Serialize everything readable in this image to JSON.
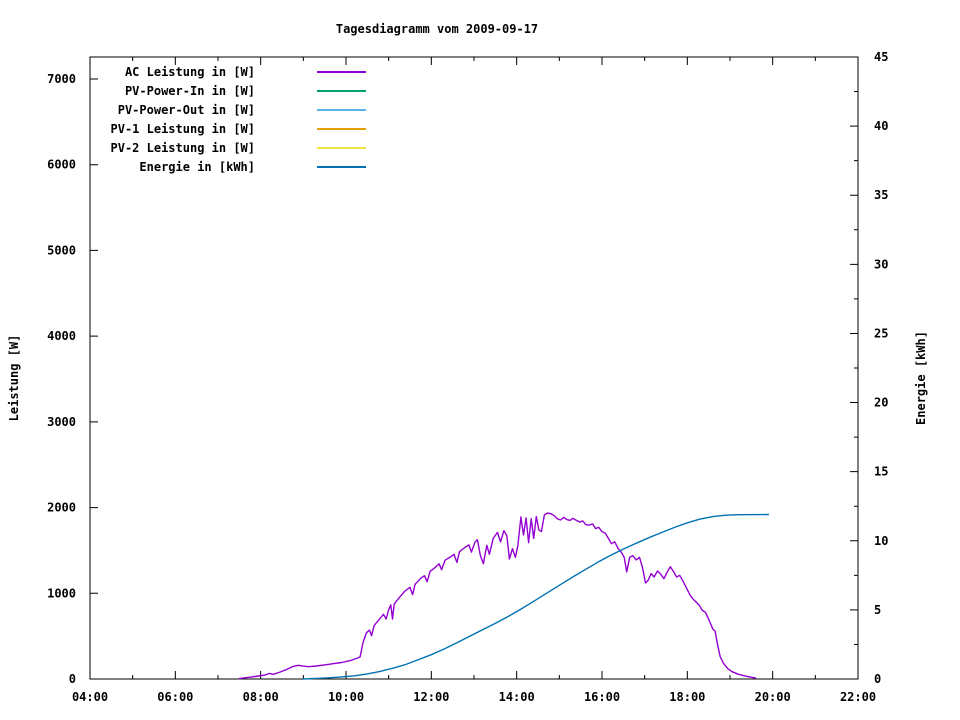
{
  "title": "Tagesdiagramm vom 2009-09-17",
  "axes": {
    "left_label": "Leistung [W]",
    "right_label": "Energie [kWh]"
  },
  "chart_data": {
    "type": "line",
    "title": "Tagesdiagramm vom 2009-09-17",
    "xlabel": "",
    "x_axis": {
      "unit": "time",
      "start_hour": 4,
      "end_hour": 22,
      "major_tick_labels": [
        "04:00",
        "06:00",
        "08:00",
        "10:00",
        "12:00",
        "14:00",
        "16:00",
        "18:00",
        "20:00",
        "22:00"
      ],
      "major_tick_hours": [
        4,
        6,
        8,
        10,
        12,
        14,
        16,
        18,
        20,
        22
      ],
      "minor_tick_hours": [
        5,
        7,
        9,
        11,
        13,
        15,
        17,
        19,
        21
      ]
    },
    "y_axis_left": {
      "label": "Leistung [W]",
      "range": [
        0,
        7256
      ],
      "ticks": [
        0,
        1000,
        2000,
        3000,
        4000,
        5000,
        6000,
        7000
      ]
    },
    "y_axis_right": {
      "label": "Energie [kWh]",
      "range": [
        0,
        45
      ],
      "ticks": [
        0,
        5,
        10,
        15,
        20,
        25,
        30,
        35,
        40,
        45
      ],
      "minor_ticks": [
        2.5,
        7.5,
        12.5,
        17.5,
        22.5,
        27.5,
        32.5,
        37.5,
        42.5
      ]
    },
    "legend_position": "top-left-inside",
    "grid": false,
    "series": [
      {
        "name": "AC Leistung in [W]",
        "color": "#9400D3",
        "axis": "left",
        "points": [
          [
            7.5,
            5
          ],
          [
            7.65,
            15
          ],
          [
            7.8,
            25
          ],
          [
            7.95,
            35
          ],
          [
            8.1,
            45
          ],
          [
            8.2,
            65
          ],
          [
            8.3,
            55
          ],
          [
            8.45,
            80
          ],
          [
            8.6,
            110
          ],
          [
            8.75,
            145
          ],
          [
            8.88,
            160
          ],
          [
            9.0,
            150
          ],
          [
            9.12,
            143
          ],
          [
            9.3,
            152
          ],
          [
            9.5,
            165
          ],
          [
            9.7,
            178
          ],
          [
            9.9,
            192
          ],
          [
            10.1,
            215
          ],
          [
            10.25,
            240
          ],
          [
            10.33,
            258
          ],
          [
            10.4,
            430
          ],
          [
            10.48,
            540
          ],
          [
            10.55,
            570
          ],
          [
            10.6,
            505
          ],
          [
            10.66,
            625
          ],
          [
            10.78,
            695
          ],
          [
            10.88,
            755
          ],
          [
            10.94,
            700
          ],
          [
            11.0,
            810
          ],
          [
            11.05,
            865
          ],
          [
            11.09,
            700
          ],
          [
            11.13,
            875
          ],
          [
            11.25,
            950
          ],
          [
            11.38,
            1025
          ],
          [
            11.5,
            1070
          ],
          [
            11.56,
            985
          ],
          [
            11.62,
            1105
          ],
          [
            11.75,
            1175
          ],
          [
            11.84,
            1205
          ],
          [
            11.9,
            1135
          ],
          [
            11.97,
            1255
          ],
          [
            12.1,
            1305
          ],
          [
            12.18,
            1345
          ],
          [
            12.24,
            1275
          ],
          [
            12.32,
            1385
          ],
          [
            12.45,
            1425
          ],
          [
            12.53,
            1455
          ],
          [
            12.6,
            1360
          ],
          [
            12.66,
            1485
          ],
          [
            12.8,
            1540
          ],
          [
            12.88,
            1565
          ],
          [
            12.94,
            1480
          ],
          [
            13.02,
            1595
          ],
          [
            13.08,
            1625
          ],
          [
            13.15,
            1440
          ],
          [
            13.22,
            1345
          ],
          [
            13.3,
            1560
          ],
          [
            13.36,
            1455
          ],
          [
            13.45,
            1640
          ],
          [
            13.55,
            1710
          ],
          [
            13.62,
            1600
          ],
          [
            13.7,
            1730
          ],
          [
            13.77,
            1670
          ],
          [
            13.83,
            1400
          ],
          [
            13.9,
            1520
          ],
          [
            13.97,
            1420
          ],
          [
            14.03,
            1560
          ],
          [
            14.1,
            1890
          ],
          [
            14.16,
            1680
          ],
          [
            14.22,
            1880
          ],
          [
            14.28,
            1590
          ],
          [
            14.34,
            1870
          ],
          [
            14.4,
            1640
          ],
          [
            14.46,
            1895
          ],
          [
            14.52,
            1740
          ],
          [
            14.58,
            1720
          ],
          [
            14.65,
            1915
          ],
          [
            14.72,
            1935
          ],
          [
            14.8,
            1930
          ],
          [
            14.88,
            1905
          ],
          [
            14.95,
            1870
          ],
          [
            15.03,
            1855
          ],
          [
            15.1,
            1885
          ],
          [
            15.18,
            1860
          ],
          [
            15.25,
            1850
          ],
          [
            15.32,
            1875
          ],
          [
            15.4,
            1850
          ],
          [
            15.48,
            1830
          ],
          [
            15.55,
            1845
          ],
          [
            15.62,
            1800
          ],
          [
            15.7,
            1795
          ],
          [
            15.78,
            1810
          ],
          [
            15.85,
            1755
          ],
          [
            15.92,
            1770
          ],
          [
            16.0,
            1720
          ],
          [
            16.08,
            1700
          ],
          [
            16.15,
            1640
          ],
          [
            16.22,
            1580
          ],
          [
            16.3,
            1600
          ],
          [
            16.38,
            1520
          ],
          [
            16.45,
            1480
          ],
          [
            16.52,
            1420
          ],
          [
            16.58,
            1250
          ],
          [
            16.65,
            1420
          ],
          [
            16.72,
            1440
          ],
          [
            16.8,
            1390
          ],
          [
            16.88,
            1420
          ],
          [
            16.95,
            1300
          ],
          [
            17.02,
            1120
          ],
          [
            17.08,
            1150
          ],
          [
            17.15,
            1230
          ],
          [
            17.22,
            1190
          ],
          [
            17.3,
            1260
          ],
          [
            17.38,
            1220
          ],
          [
            17.45,
            1170
          ],
          [
            17.52,
            1240
          ],
          [
            17.6,
            1310
          ],
          [
            17.68,
            1250
          ],
          [
            17.75,
            1190
          ],
          [
            17.82,
            1210
          ],
          [
            17.9,
            1140
          ],
          [
            17.98,
            1060
          ],
          [
            18.05,
            990
          ],
          [
            18.12,
            940
          ],
          [
            18.2,
            900
          ],
          [
            18.28,
            860
          ],
          [
            18.35,
            800
          ],
          [
            18.42,
            780
          ],
          [
            18.48,
            720
          ],
          [
            18.55,
            640
          ],
          [
            18.6,
            580
          ],
          [
            18.65,
            560
          ],
          [
            18.7,
            420
          ],
          [
            18.77,
            260
          ],
          [
            18.85,
            180
          ],
          [
            18.95,
            120
          ],
          [
            19.05,
            85
          ],
          [
            19.2,
            55
          ],
          [
            19.4,
            30
          ],
          [
            19.6,
            10
          ]
        ]
      },
      {
        "name": "PV-Power-In in [W]",
        "color": "#009E73",
        "axis": "left",
        "points": []
      },
      {
        "name": "PV-Power-Out in [W]",
        "color": "#56B4E9",
        "axis": "left",
        "points": []
      },
      {
        "name": "PV-1 Leistung in [W]",
        "color": "#E69F00",
        "axis": "left",
        "points": []
      },
      {
        "name": "PV-2 Leistung in [W]",
        "color": "#F0E442",
        "axis": "left",
        "points": []
      },
      {
        "name": "Energie in [kWh]",
        "color": "#0072B2",
        "axis": "right",
        "points": [
          [
            9.0,
            0
          ],
          [
            9.3,
            0.04
          ],
          [
            9.6,
            0.09
          ],
          [
            9.9,
            0.15
          ],
          [
            10.2,
            0.23
          ],
          [
            10.5,
            0.37
          ],
          [
            10.8,
            0.55
          ],
          [
            11.1,
            0.78
          ],
          [
            11.4,
            1.05
          ],
          [
            11.7,
            1.4
          ],
          [
            12.0,
            1.76
          ],
          [
            12.3,
            2.17
          ],
          [
            12.6,
            2.62
          ],
          [
            12.9,
            3.09
          ],
          [
            13.2,
            3.56
          ],
          [
            13.5,
            4.02
          ],
          [
            13.8,
            4.52
          ],
          [
            14.1,
            5.06
          ],
          [
            14.4,
            5.62
          ],
          [
            14.7,
            6.2
          ],
          [
            15.0,
            6.78
          ],
          [
            15.3,
            7.35
          ],
          [
            15.6,
            7.9
          ],
          [
            15.9,
            8.44
          ],
          [
            16.2,
            8.94
          ],
          [
            16.5,
            9.4
          ],
          [
            16.8,
            9.82
          ],
          [
            17.1,
            10.22
          ],
          [
            17.4,
            10.6
          ],
          [
            17.7,
            10.97
          ],
          [
            18.0,
            11.3
          ],
          [
            18.3,
            11.57
          ],
          [
            18.6,
            11.75
          ],
          [
            18.9,
            11.85
          ],
          [
            19.2,
            11.89
          ],
          [
            19.9,
            11.9
          ]
        ]
      }
    ],
    "annotations": {
      "ac_peak_watts": 1935,
      "ac_peak_time": "14:45",
      "energy_total_kwh": 11.9
    }
  }
}
